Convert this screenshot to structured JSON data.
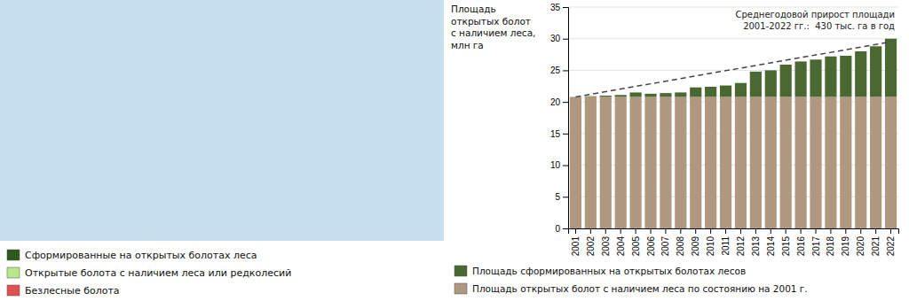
{
  "chart_data": [
    {
      "type": "map",
      "color": "#c8dff0",
      "series": [
        {
          "name": "Сформированные на открытых болотах леса",
          "color": "#2d5a1b"
        },
        {
          "name": "Открытые болота с наличием леса или редколесий",
          "color": "#b8e88a"
        },
        {
          "name": "Безлесные болота",
          "color": "#e05050"
        }
      ]
    },
    {
      "type": "bar",
      "stacked": true,
      "grid": true,
      "ylabel": "Площадь\nоткрытых болот\nс наличием леса,\nмлн га",
      "annotation": "Среднегодовой прирост площади\n2001-2022 гг.:  430 тыс. га в год",
      "categories": [
        2001,
        2002,
        2003,
        2004,
        2005,
        2006,
        2007,
        2008,
        2009,
        2010,
        2011,
        2012,
        2013,
        2014,
        2015,
        2016,
        2017,
        2018,
        2019,
        2020,
        2021,
        2022
      ],
      "series": [
        {
          "name": "Площадь открытых болот с наличием леса по состоянию на 2001 г.",
          "color": "#b09880",
          "values": [
            20.8,
            20.8,
            20.8,
            20.8,
            20.8,
            20.8,
            20.8,
            20.8,
            20.8,
            20.8,
            20.8,
            20.8,
            20.8,
            20.8,
            20.8,
            20.8,
            20.8,
            20.8,
            20.8,
            20.8,
            20.8,
            20.8
          ]
        },
        {
          "name": "Площадь сформированных на открытых болотах лесов",
          "color": "#4a6831",
          "values": [
            0.0,
            0.1,
            0.2,
            0.3,
            0.7,
            0.5,
            0.6,
            0.7,
            1.5,
            1.6,
            1.8,
            2.2,
            4.0,
            4.2,
            5.1,
            5.6,
            5.9,
            6.4,
            6.5,
            7.2,
            8.0,
            9.2
          ]
        },
        {
          "type": "line",
          "line_style": "dashed",
          "color": "#444444",
          "values": [
            20.8,
            21.214285714285715,
            21.62857142857143,
            22.04285714285714,
            22.457142857142856,
            22.87142857142857,
            23.285714285714285,
            23.7,
            24.114285714285714,
            24.52857142857143,
            24.942857142857143,
            25.357142857142858,
            25.771428571428572,
            26.185714285714287,
            26.6,
            27.014285714285716,
            27.42857142857143,
            27.842857142857145,
            28.257142857142856,
            28.67142857142857,
            29.085714285714285,
            29.5
          ]
        }
      ],
      "ylim": [
        0,
        35
      ],
      "yticks": [
        0,
        5,
        10,
        15,
        20,
        25,
        30,
        35
      ]
    }
  ]
}
